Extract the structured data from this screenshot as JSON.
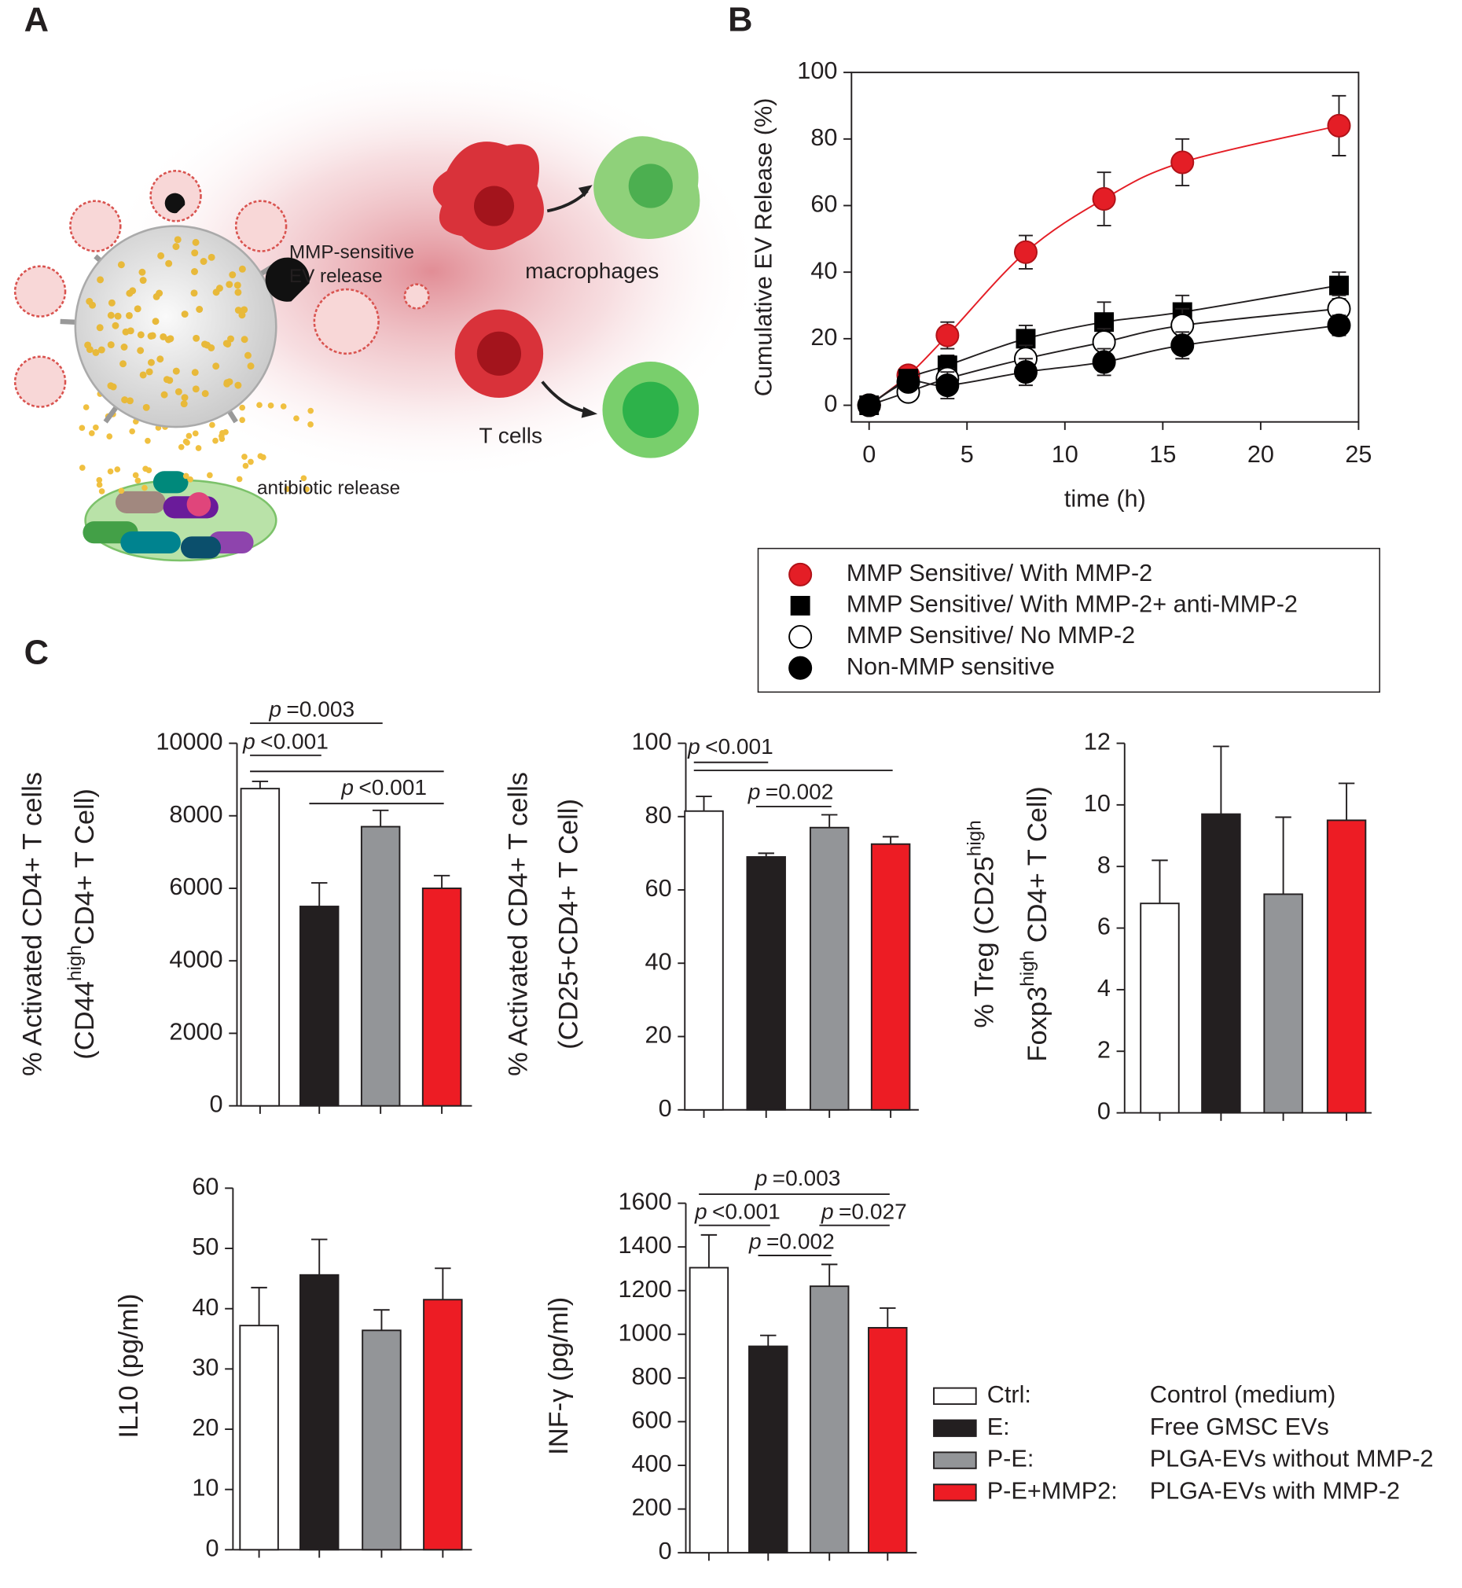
{
  "panel_labels": [
    "A",
    "B",
    "C"
  ],
  "diagram": {
    "release_label": [
      "MMP-sensitive",
      "EV release"
    ],
    "macrophage_label": "macrophages",
    "tcell_label": "T cells",
    "antibiotic_label": "antibiotic release"
  },
  "bar_legend": [
    {
      "code": "Ctrl:",
      "label": "Control (medium)",
      "color": "#ffffff"
    },
    {
      "code": "E:",
      "label": "Free GMSC EVs",
      "color": "#231f20"
    },
    {
      "code": "P-E:",
      "label": "PLGA-EVs without MMP-2",
      "color": "#939598"
    },
    {
      "code": "P-E+MMP2:",
      "label": "PLGA-EVs with MMP-2",
      "color": "#ed1c24"
    }
  ],
  "chart_data": [
    {
      "type": "line",
      "xlabel": "time (h)",
      "ylabel": "Cumulative EV Release (%)",
      "x": [
        0,
        2,
        4,
        8,
        12,
        16,
        24
      ],
      "xlim": [
        -0.9,
        25
      ],
      "xticks": [
        0,
        5,
        10,
        15,
        20,
        25
      ],
      "ylim": [
        -5,
        100
      ],
      "yticks": [
        0,
        20,
        40,
        60,
        80,
        100
      ],
      "series": [
        {
          "name": "MMP Sensitive/ With MMP-2",
          "marker": "circle",
          "color": "#e41e26",
          "line_color": "#e41e26",
          "values": [
            0,
            9,
            21,
            46,
            62,
            73,
            84
          ],
          "errors": [
            1,
            2,
            4,
            5,
            8,
            7,
            9
          ]
        },
        {
          "name": "MMP Sensitive/ With MMP-2+ anti-MMP-2",
          "marker": "square",
          "color": "#000000",
          "line_color": "#231f20",
          "values": [
            0,
            8,
            12,
            20,
            25,
            28,
            36
          ],
          "errors": [
            1,
            2,
            3,
            4,
            6,
            5,
            4
          ]
        },
        {
          "name": "MMP Sensitive/ No MMP-2",
          "marker": "circle",
          "color": "#ffffff",
          "line_color": "#231f20",
          "values": [
            0,
            4,
            8,
            14,
            19,
            24,
            29
          ],
          "errors": [
            1,
            2,
            3,
            4,
            4,
            5,
            4
          ]
        },
        {
          "name": "Non-MMP sensitive",
          "marker": "circle",
          "color": "#000000",
          "line_color": "#231f20",
          "values": [
            0,
            7,
            6,
            10,
            13,
            18,
            24
          ],
          "errors": [
            1,
            2,
            4,
            4,
            4,
            4,
            3
          ]
        }
      ]
    },
    {
      "type": "bar",
      "ylabel": [
        [
          "% Activated CD4+ T cells"
        ],
        [
          "(CD44",
          {
            "text": "high",
            "sup": true
          },
          "CD4+ T Cell)"
        ]
      ],
      "values": [
        8750,
        5500,
        7700,
        6000
      ],
      "errors": [
        200,
        650,
        450,
        350
      ],
      "ylim": [
        0,
        10000
      ],
      "yticks": [
        0,
        2000,
        4000,
        6000,
        8000,
        10000
      ],
      "annotations": [
        {
          "prefix": "p",
          "text": "=0.003",
          "pairs": [
            [
              0,
              2
            ]
          ]
        },
        {
          "prefix": "p",
          "text": "<0.001",
          "pairs": [
            [
              0,
              1
            ],
            [
              0,
              3
            ]
          ]
        },
        {
          "prefix": "p",
          "text": "<0.001",
          "pairs": [
            [
              1,
              3
            ]
          ]
        }
      ]
    },
    {
      "type": "bar",
      "ylabel": [
        [
          "% Activated CD4+ T cells"
        ],
        [
          "(CD25+CD4+ T Cell)"
        ]
      ],
      "values": [
        81.5,
        69,
        77,
        72.5
      ],
      "errors": [
        4,
        1,
        3.5,
        2
      ],
      "ylim": [
        0,
        100
      ],
      "yticks": [
        0,
        20,
        40,
        60,
        80,
        100
      ],
      "annotations": [
        {
          "prefix": "p",
          "text": "<0.001",
          "pairs": [
            [
              0,
              1
            ],
            [
              0,
              3
            ]
          ]
        },
        {
          "prefix": "p",
          "text": "=0.002",
          "pairs": [
            [
              1,
              2
            ]
          ]
        }
      ]
    },
    {
      "type": "bar",
      "ylabel": [
        [
          "% Treg (CD25",
          {
            "text": "high",
            "sup": true
          }
        ],
        [
          "Foxp3",
          {
            "text": "high",
            "sup": true
          },
          " CD4+ T Cell)"
        ]
      ],
      "values": [
        6.8,
        9.7,
        7.1,
        9.5
      ],
      "errors": [
        1.4,
        2.2,
        2.5,
        1.2
      ],
      "ylim": [
        0,
        12
      ],
      "yticks": [
        0,
        2,
        4,
        6,
        8,
        10,
        12
      ],
      "annotations": []
    },
    {
      "type": "bar",
      "ylabel": [
        [
          "IL10 (pg/ml)"
        ]
      ],
      "values": [
        37.2,
        45.6,
        36.4,
        41.5
      ],
      "errors": [
        6.3,
        5.9,
        3.4,
        5.2
      ],
      "ylim": [
        0,
        60
      ],
      "yticks": [
        0,
        10,
        20,
        30,
        40,
        50,
        60
      ],
      "annotations": []
    },
    {
      "type": "bar",
      "ylabel": [
        [
          "INF-γ (pg/ml)"
        ]
      ],
      "values": [
        1305,
        945,
        1220,
        1030
      ],
      "errors": [
        150,
        50,
        100,
        90
      ],
      "ylim": [
        0,
        1600
      ],
      "yticks": [
        0,
        200,
        400,
        600,
        800,
        1000,
        1200,
        1400,
        1600
      ],
      "annotations": [
        {
          "prefix": "p",
          "text": "=0.003",
          "pairs": [
            [
              0,
              3
            ]
          ]
        },
        {
          "prefix": "p",
          "text": "<0.001",
          "pairs": [
            [
              0,
              1
            ]
          ]
        },
        {
          "prefix": "p",
          "text": "=0.027",
          "pairs": [
            [
              2,
              3
            ]
          ]
        },
        {
          "prefix": "p",
          "text": "=0.002",
          "pairs": [
            [
              1,
              2
            ]
          ]
        }
      ]
    }
  ]
}
